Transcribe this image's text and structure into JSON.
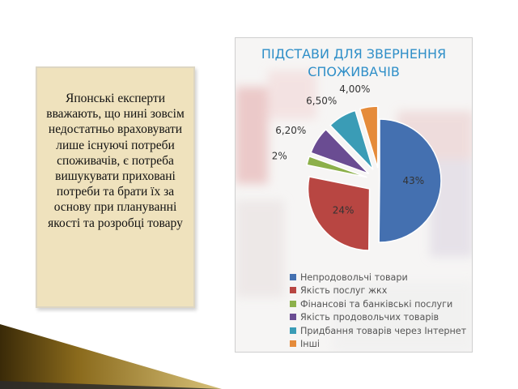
{
  "note": {
    "text": "Японські експерти вважають, що нині зовсім недостатньо враховувати лише існуючі потреби споживачів, є потреба вишукувати приховані потреби та брати їх за основу при плануванні якості та розробці товару"
  },
  "chart_data": {
    "type": "pie",
    "title": "ПІДСТАВИ ДЛЯ ЗВЕРНЕННЯ СПОЖИВАЧІВ",
    "title_lines": [
      "ПІДСТАВИ ДЛЯ ЗВЕРНЕННЯ",
      "СПОЖИВАЧІВ"
    ],
    "categories": [
      "Непродовольчі товари",
      "Якість послуг жкх",
      "Фінансові та банківські послуги",
      "Якість продовольчих товарів",
      "Придбання товарів через Інтернет",
      "Інші"
    ],
    "values": [
      43,
      24,
      2,
      6.2,
      6.5,
      4.0
    ],
    "value_labels": [
      "43%",
      "24%",
      "2%",
      "6,20%",
      "6,50%",
      "4,00%"
    ],
    "colors": [
      "#4470b0",
      "#b84642",
      "#8cb04a",
      "#6a4c92",
      "#3a9cb6",
      "#e58b3a"
    ],
    "exploded": true,
    "legend_position": "bottom"
  }
}
